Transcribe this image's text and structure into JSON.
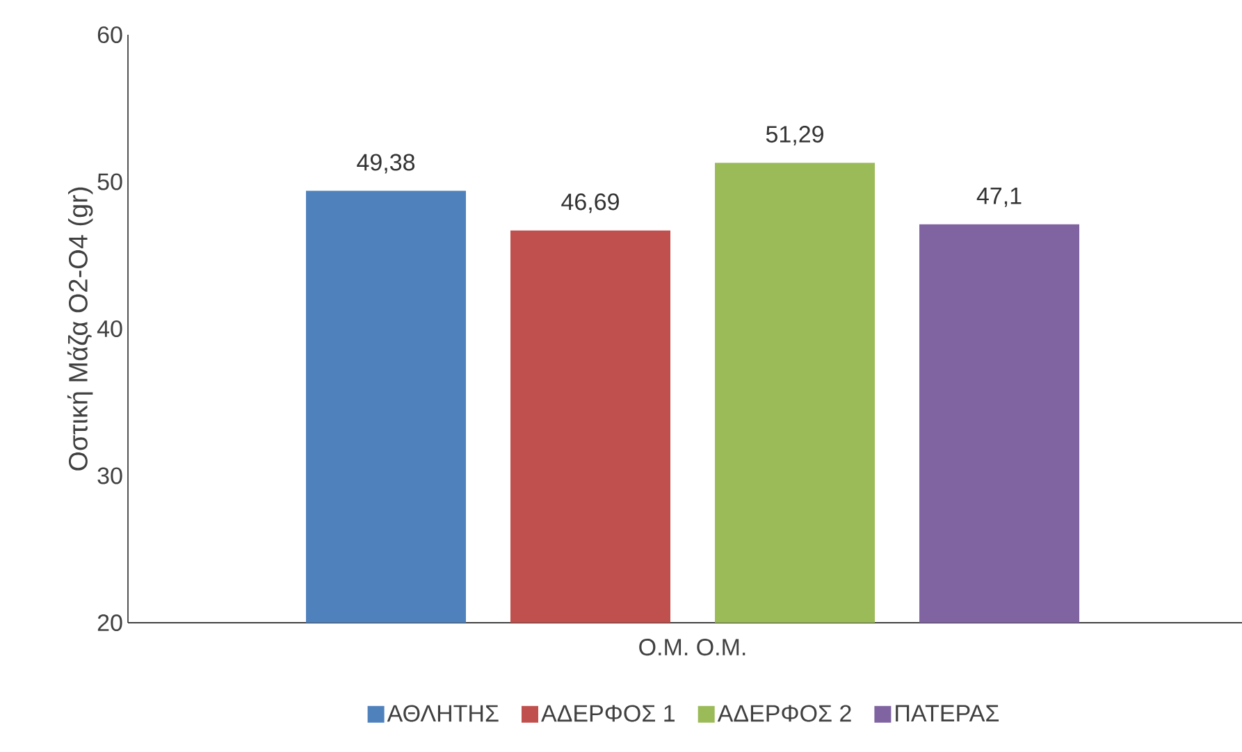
{
  "chart_data": {
    "type": "bar",
    "ylabel": "Οστική Μάζα Ο2-Ο4 (gr)",
    "categories": [
      "Ο.Μ. Ο.Μ."
    ],
    "series": [
      {
        "name": "ΑΘΛΗΤΗΣ",
        "color": "#4f81bd",
        "values": [
          49.38
        ],
        "value_labels": [
          "49,38"
        ]
      },
      {
        "name": "ΑΔΕΡΦΟΣ 1",
        "color": "#c0504d",
        "values": [
          46.69
        ],
        "value_labels": [
          "46,69"
        ]
      },
      {
        "name": "ΑΔΕΡΦΟΣ 2",
        "color": "#9bbb59",
        "values": [
          51.29
        ],
        "value_labels": [
          "51,29"
        ]
      },
      {
        "name": "ΠΑΤΕΡΑΣ",
        "color": "#8064a2",
        "values": [
          47.1
        ],
        "value_labels": [
          "47,1"
        ]
      }
    ],
    "ylim": [
      20,
      60
    ],
    "yticks": [
      20,
      30,
      40,
      50,
      60
    ],
    "legend": "bottom"
  }
}
